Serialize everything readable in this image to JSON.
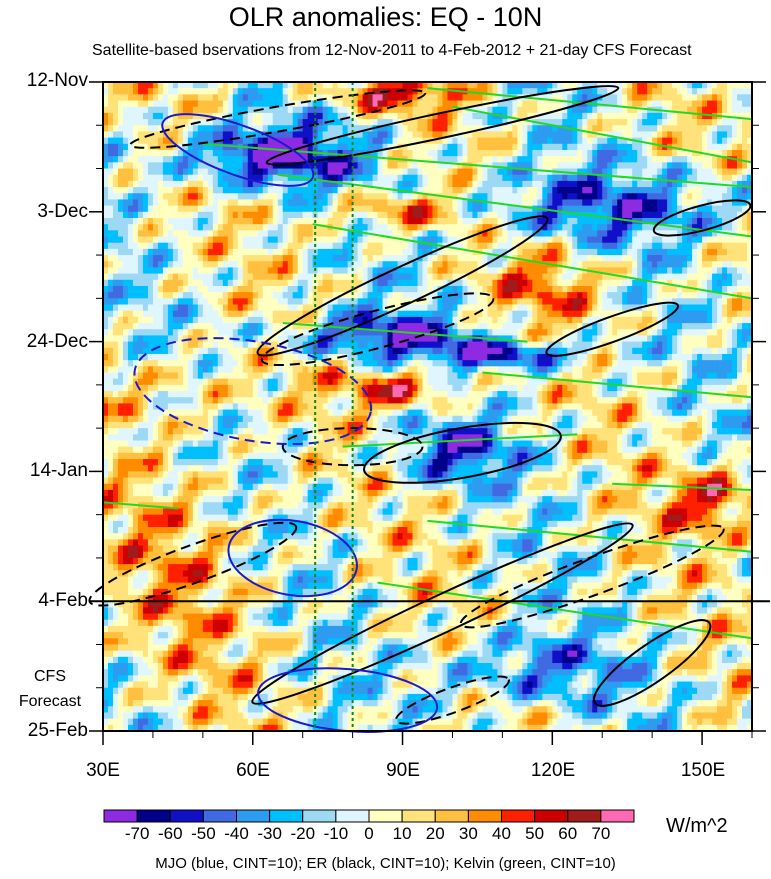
{
  "chart_data": {
    "type": "heatmap",
    "title": "OLR anomalies: EQ - 10N",
    "subtitle": "Satellite-based bservations from 12-Nov-2011 to 4-Feb-2012 + 21-day CFS Forecast",
    "x_range": [
      30,
      160
    ],
    "x_ticks": [
      {
        "value": 30,
        "label": "30E"
      },
      {
        "value": 60,
        "label": "60E"
      },
      {
        "value": 90,
        "label": "90E"
      },
      {
        "value": 120,
        "label": "120E"
      },
      {
        "value": 150,
        "label": "150E"
      }
    ],
    "x_minor_ticks": [
      40,
      50,
      70,
      80,
      100,
      110,
      130,
      140,
      160
    ],
    "y_range_days": [
      0,
      105
    ],
    "y_ticks": [
      {
        "day": 0,
        "label": "12-Nov"
      },
      {
        "day": 21,
        "label": "3-Dec"
      },
      {
        "day": 42,
        "label": "24-Dec"
      },
      {
        "day": 63,
        "label": "14-Jan"
      },
      {
        "day": 84,
        "label": "4-Feb"
      },
      {
        "day": 105,
        "label": "25-Feb"
      }
    ],
    "forecast_start_day": 84,
    "forecast_label": [
      "CFS",
      "Forecast"
    ],
    "reference_longitudes": [
      72.5,
      80
    ],
    "colorbar": {
      "levels": [
        "-70",
        "-60",
        "-50",
        "-40",
        "-30",
        "-20",
        "-10",
        "0",
        "10",
        "20",
        "30",
        "40",
        "50",
        "60",
        "70"
      ],
      "colors": [
        "#8e2be2",
        "#00008b",
        "#1010c8",
        "#4169e1",
        "#2d9bf0",
        "#00bfff",
        "#9dd8f5",
        "#e0f6ff",
        "#ffffc0",
        "#ffe27a",
        "#ffc040",
        "#ff8c00",
        "#ff2000",
        "#cc0000",
        "#a01c1c",
        "#ff69b4"
      ],
      "units": "W/m^2"
    },
    "anomaly_features": [
      {
        "lon_start": 48,
        "lon_end": 78,
        "day_start": 8,
        "day_end": 16,
        "value": -70
      },
      {
        "lon_start": 78,
        "lon_end": 100,
        "day_start": 0,
        "day_end": 4,
        "value": 50
      },
      {
        "lon_start": 78,
        "lon_end": 100,
        "day_start": 18,
        "day_end": 24,
        "value": 50
      },
      {
        "lon_start": 70,
        "lon_end": 100,
        "day_start": 38,
        "day_end": 44,
        "value": -60
      },
      {
        "lon_start": 100,
        "lon_end": 125,
        "day_start": 42,
        "day_end": 46,
        "value": -60
      },
      {
        "lon_start": 80,
        "lon_end": 100,
        "day_start": 47,
        "day_end": 52,
        "value": 50
      },
      {
        "lon_start": 145,
        "lon_end": 160,
        "day_start": 63,
        "day_end": 72,
        "value": 50
      },
      {
        "lon_start": 30,
        "lon_end": 60,
        "day_start": 45,
        "day_end": 55,
        "value": 20
      },
      {
        "lon_start": 30,
        "lon_end": 60,
        "day_start": 64,
        "day_end": 95,
        "value": 20
      },
      {
        "lon_start": 100,
        "lon_end": 160,
        "day_start": 15,
        "day_end": 25,
        "value": -40
      },
      {
        "lon_start": 110,
        "lon_end": 130,
        "day_start": 28,
        "day_end": 38,
        "value": 30
      },
      {
        "lon_start": 90,
        "lon_end": 110,
        "day_start": 56,
        "day_end": 64,
        "value": -50
      },
      {
        "lon_start": 100,
        "lon_end": 130,
        "day_start": 90,
        "day_end": 100,
        "value": -40
      }
    ],
    "contours": {
      "mjo": {
        "color": "#1a1ad0",
        "cint": 10,
        "features": [
          {
            "lon": 57,
            "day": 11,
            "rx": 16,
            "ry": 4,
            "tilt_deg": 20,
            "dashed": false
          },
          {
            "lon": 60,
            "day": 50,
            "rx": 24,
            "ry": 8,
            "tilt_deg": 10,
            "dashed": true
          },
          {
            "lon": 68,
            "day": 77,
            "rx": 13,
            "ry": 6,
            "tilt_deg": 10,
            "dashed": false
          },
          {
            "lon": 79,
            "day": 100,
            "rx": 18,
            "ry": 5,
            "tilt_deg": 5,
            "dashed": false
          }
        ]
      },
      "er": {
        "color": "#000000",
        "cint": 10,
        "features": [
          {
            "lon": 98,
            "day": 7,
            "rx": 36,
            "ry": 2,
            "tilt_deg": -12,
            "dashed": false
          },
          {
            "lon": 90,
            "day": 33,
            "rx": 32,
            "ry": 3,
            "tilt_deg": -25,
            "dashed": false
          },
          {
            "lon": 102,
            "day": 60,
            "rx": 20,
            "ry": 4,
            "tilt_deg": -10,
            "dashed": false
          },
          {
            "lon": 98,
            "day": 86,
            "rx": 42,
            "ry": 3,
            "tilt_deg": -25,
            "dashed": false
          },
          {
            "lon": 132,
            "day": 40,
            "rx": 14,
            "ry": 2,
            "tilt_deg": -20,
            "dashed": false
          },
          {
            "lon": 150,
            "day": 22,
            "rx": 10,
            "ry": 2,
            "tilt_deg": -15,
            "dashed": false
          },
          {
            "lon": 140,
            "day": 94,
            "rx": 14,
            "ry": 3,
            "tilt_deg": -35,
            "dashed": false
          },
          {
            "lon": 65,
            "day": 6,
            "rx": 30,
            "ry": 2,
            "tilt_deg": -10,
            "dashed": true
          },
          {
            "lon": 85,
            "day": 40,
            "rx": 24,
            "ry": 3,
            "tilt_deg": -15,
            "dashed": true
          },
          {
            "lon": 80,
            "day": 59,
            "rx": 14,
            "ry": 3,
            "tilt_deg": 0,
            "dashed": true
          },
          {
            "lon": 48,
            "day": 78,
            "rx": 22,
            "ry": 3,
            "tilt_deg": -20,
            "dashed": true
          },
          {
            "lon": 128,
            "day": 80,
            "rx": 28,
            "ry": 3,
            "tilt_deg": -20,
            "dashed": true
          },
          {
            "lon": 100,
            "day": 100,
            "rx": 12,
            "ry": 2,
            "tilt_deg": -20,
            "dashed": true
          }
        ]
      },
      "kelvin": {
        "color": "#22d822",
        "cint": 10,
        "features": [
          {
            "lon_start": 95,
            "day_start": 1,
            "lon_end": 160,
            "day_end": 6
          },
          {
            "lon_start": 100,
            "day_start": 4,
            "lon_end": 160,
            "day_end": 13
          },
          {
            "lon_start": 50,
            "day_start": 10,
            "lon_end": 160,
            "day_end": 17
          },
          {
            "lon_start": 65,
            "day_start": 15,
            "lon_end": 160,
            "day_end": 25
          },
          {
            "lon_start": 72,
            "day_start": 23,
            "lon_end": 160,
            "day_end": 35
          },
          {
            "lon_start": 66,
            "day_start": 39,
            "lon_end": 115,
            "day_end": 42
          },
          {
            "lon_start": 106,
            "day_start": 47,
            "lon_end": 160,
            "day_end": 51
          },
          {
            "lon_start": 78,
            "day_start": 59,
            "lon_end": 125,
            "day_end": 57
          },
          {
            "lon_start": 132,
            "day_start": 65,
            "lon_end": 160,
            "day_end": 66
          },
          {
            "lon_start": 95,
            "day_start": 71,
            "lon_end": 160,
            "day_end": 76
          },
          {
            "lon_start": 85,
            "day_start": 81,
            "lon_end": 160,
            "day_end": 90
          },
          {
            "lon_start": 30,
            "day_start": 68,
            "lon_end": 45,
            "day_end": 69
          }
        ]
      }
    },
    "legend_text": "MJO (blue, CINT=10); ER (black, CINT=10); Kelvin (green, CINT=10)"
  }
}
